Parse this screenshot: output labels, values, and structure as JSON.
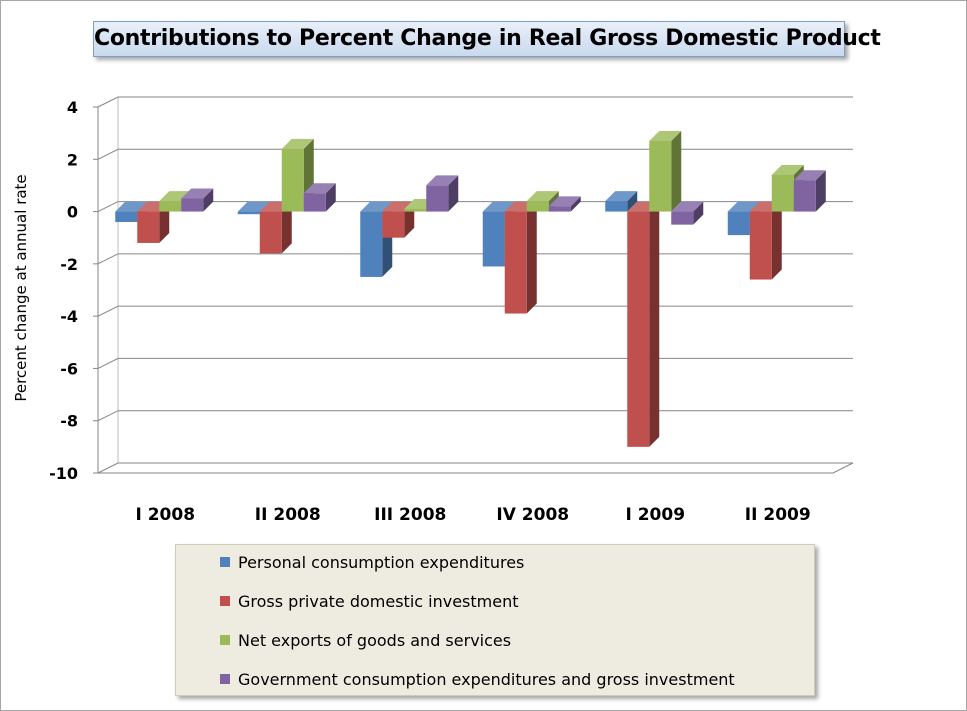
{
  "chart_data": {
    "type": "bar",
    "title": "Contributions to Percent Change in Real Gross Domestic Product",
    "ylabel": "Percent change at annual rate",
    "xlabel": "",
    "ylim": [
      -10,
      4
    ],
    "yticks": [
      "4",
      "2",
      "0",
      "-2",
      "-4",
      "-6",
      "-8",
      "-10"
    ],
    "categories": [
      "I 2008",
      "II 2008",
      "III 2008",
      "IV 2008",
      "I 2009",
      "II 2009"
    ],
    "series": [
      {
        "name": "Personal consumption expenditures",
        "color": "#4f81bd",
        "values": [
          -0.4,
          -0.1,
          -2.5,
          -2.1,
          0.4,
          -0.9
        ]
      },
      {
        "name": "Gross private domestic investment",
        "color": "#c0504d",
        "values": [
          -1.2,
          -1.6,
          -1.0,
          -3.9,
          -9.0,
          -2.6
        ]
      },
      {
        "name": "Net exports of goods and services",
        "color": "#9bbb59",
        "values": [
          0.4,
          2.4,
          0.1,
          0.4,
          2.7,
          1.4
        ]
      },
      {
        "name": "Government consumption expenditures and gross investment",
        "color": "#8064a2",
        "values": [
          0.5,
          0.7,
          1.0,
          0.2,
          -0.5,
          1.2
        ]
      }
    ],
    "grid": true,
    "legend_position": "bottom",
    "style": "3d-clustered-column"
  }
}
